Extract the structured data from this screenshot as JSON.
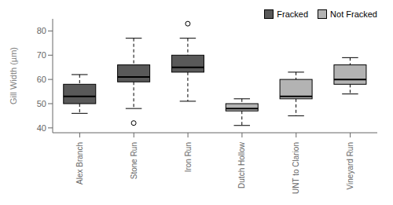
{
  "chart_data": {
    "type": "box",
    "categories": [
      "Alex Branch",
      "Stone Run",
      "Iron Run",
      "Dutch Hollow",
      "UNT to Clarion",
      "Vineyard Run"
    ],
    "ylabel": "Gill Width (µm)",
    "ylim": [
      38,
      85
    ],
    "yticks": [
      40,
      50,
      60,
      70,
      80
    ],
    "legend": "upper right",
    "series": [
      {
        "name": "Fracked",
        "color": "#595959",
        "values": [
          {
            "whislo": 46,
            "q1": 50,
            "med": 53,
            "q3": 58,
            "whishi": 62,
            "fliers": []
          },
          {
            "whislo": 48,
            "q1": 59,
            "med": 61,
            "q3": 66,
            "whishi": 77,
            "fliers": [
              42
            ]
          },
          {
            "whislo": 51,
            "q1": 63,
            "med": 65,
            "q3": 70,
            "whishi": 77,
            "fliers": [
              83
            ]
          },
          null,
          null,
          null
        ]
      },
      {
        "name": "Not Fracked",
        "color": "#b3b3b3",
        "values": [
          null,
          null,
          null,
          {
            "whislo": 41,
            "q1": 47,
            "med": 48,
            "q3": 50,
            "whishi": 52,
            "fliers": []
          },
          {
            "whislo": 45,
            "q1": 52,
            "med": 53,
            "q3": 60,
            "whishi": 63,
            "fliers": []
          },
          {
            "whislo": 54,
            "q1": 58,
            "med": 60,
            "q3": 66,
            "whishi": 69,
            "fliers": []
          }
        ]
      }
    ]
  }
}
